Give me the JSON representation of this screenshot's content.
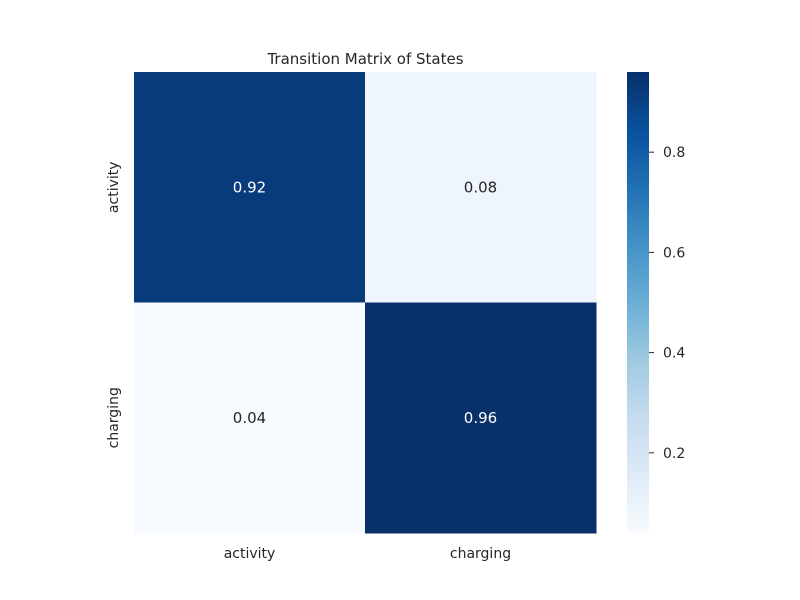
{
  "chart_data": {
    "type": "heatmap",
    "title": "Transition Matrix of States",
    "xlabel": "",
    "ylabel": "",
    "x_categories": [
      "activity",
      "charging"
    ],
    "y_categories": [
      "activity",
      "charging"
    ],
    "values": [
      [
        0.92,
        0.08
      ],
      [
        0.04,
        0.96
      ]
    ],
    "value_labels": [
      [
        "0.92",
        "0.08"
      ],
      [
        "0.04",
        "0.96"
      ]
    ],
    "colormap": "Blues",
    "color_range": [
      0.04,
      0.96
    ],
    "colorbar_ticks": [
      0.2,
      0.4,
      0.6,
      0.8
    ],
    "colorbar_tick_labels": [
      "0.2",
      "0.4",
      "0.6",
      "0.8"
    ],
    "grid": false,
    "legend": "colorbar-right",
    "colors": {
      "text": "#262626",
      "annot_dark_cell": "#ffffff",
      "annot_light_cell": "#262626"
    }
  }
}
